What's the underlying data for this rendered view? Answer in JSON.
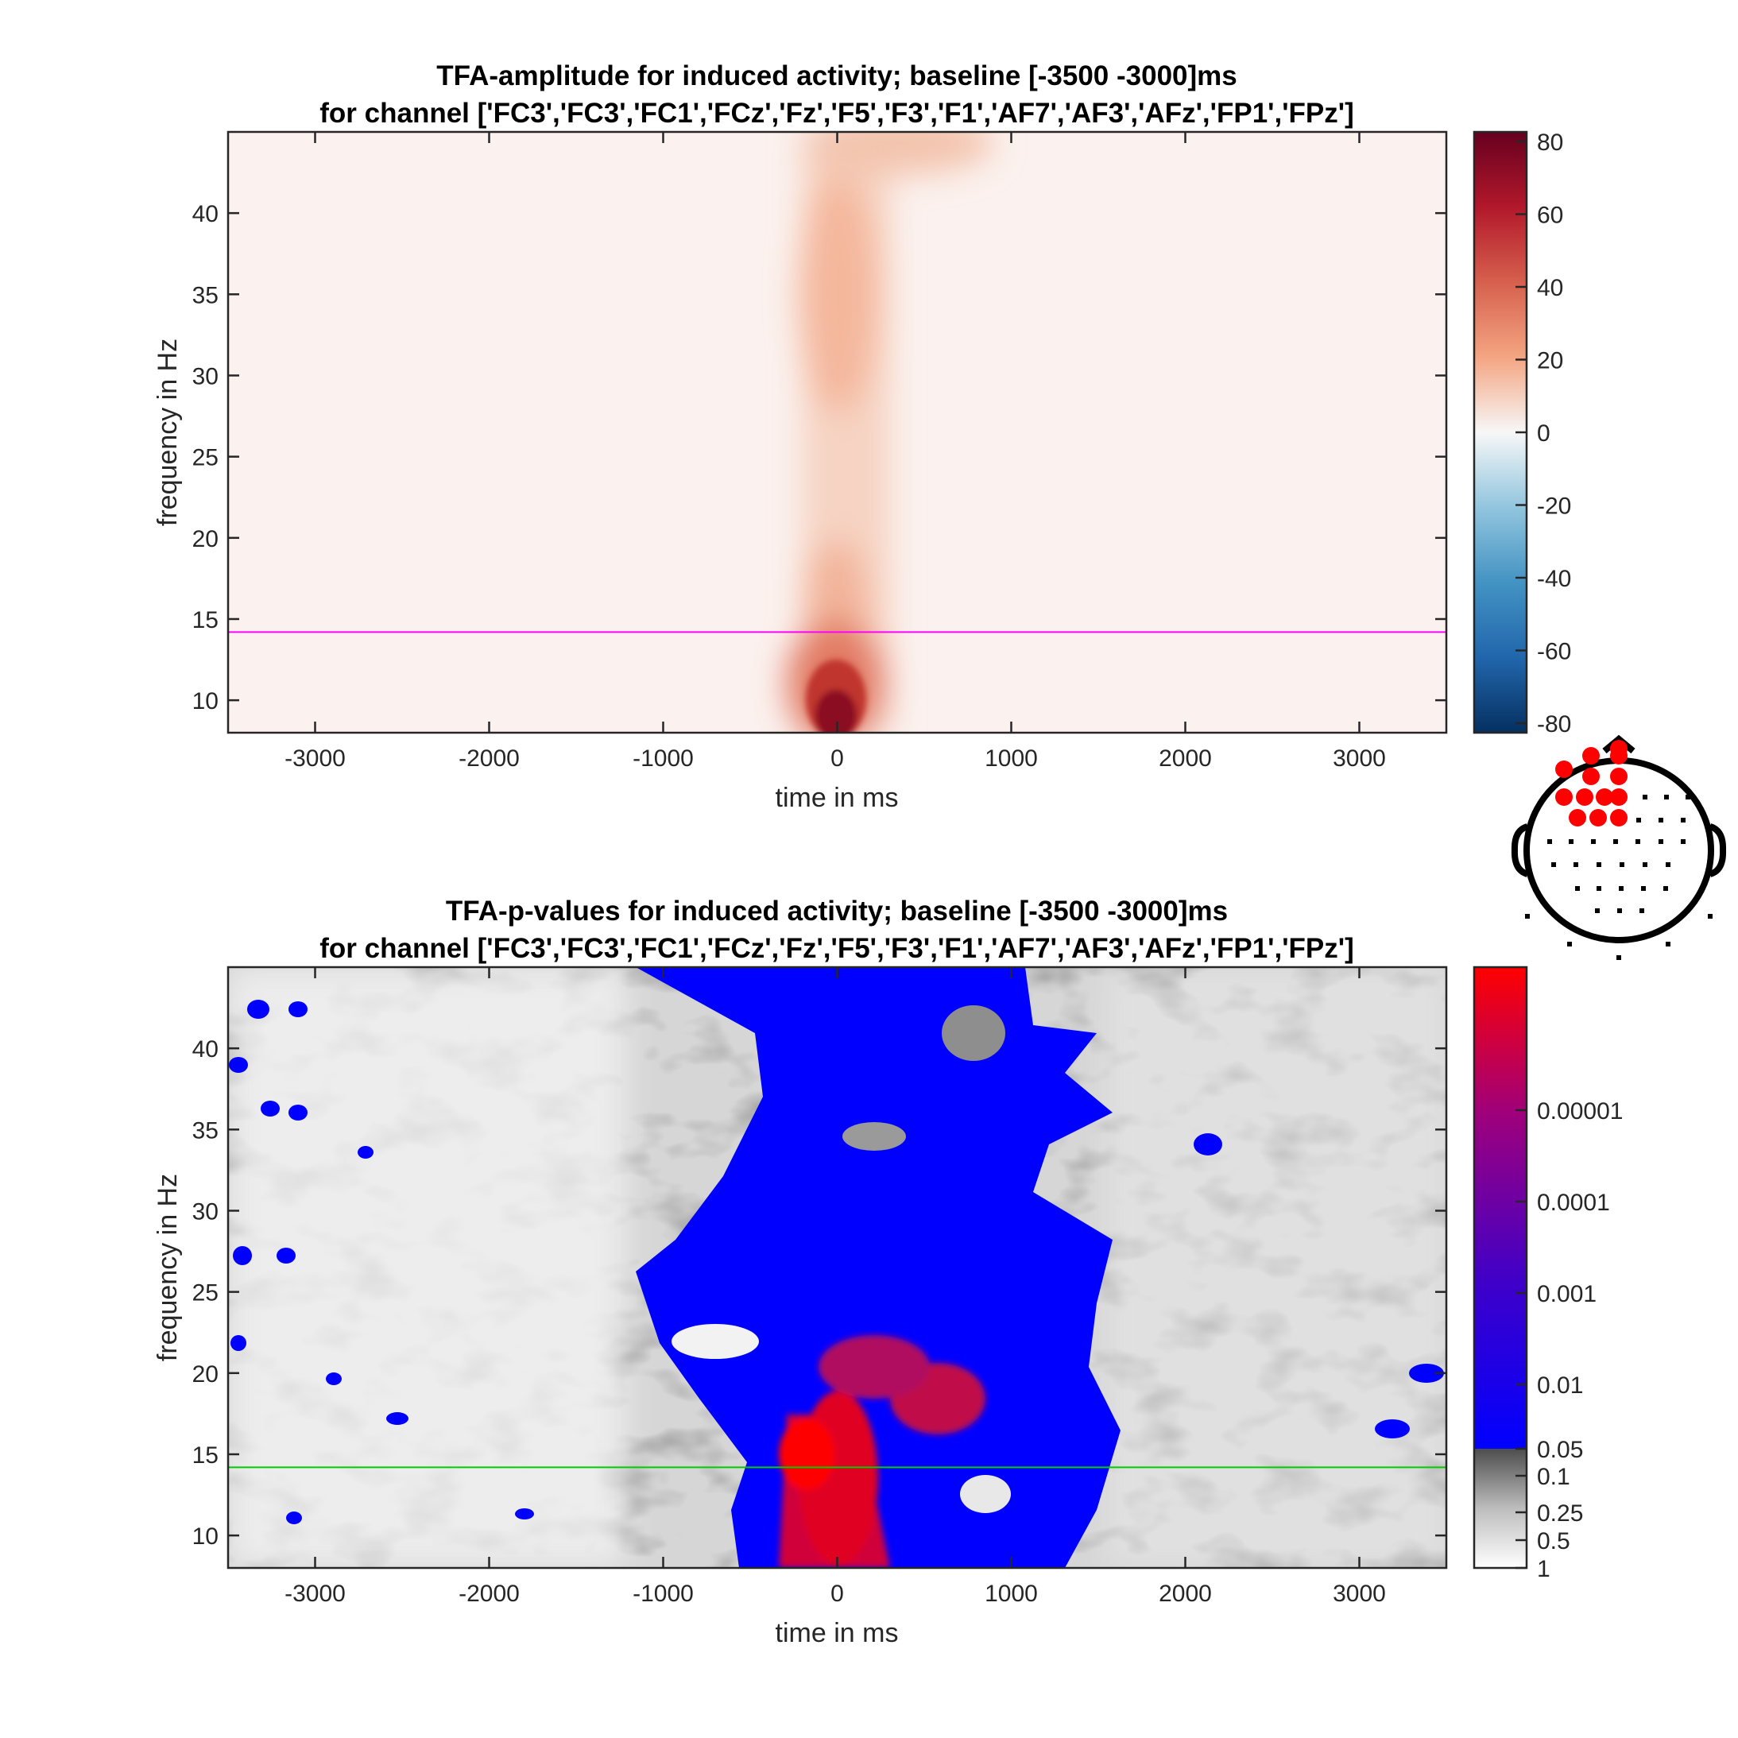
{
  "chart_data": [
    {
      "type": "heatmap",
      "title": "TFA-amplitude for induced activity; baseline [-3500 -3000]ms",
      "subtitle": "for channel ['FC3','FC3','FC1','FCz','Fz','F5','F3','F1','AF7','AF3','AFz','FP1','FPz']",
      "xlabel": "time in ms",
      "ylabel": "frequency in Hz",
      "xlim": [
        -3500,
        3500
      ],
      "ylim": [
        8,
        45
      ],
      "xticks": [
        -3000,
        -2000,
        -1000,
        0,
        1000,
        2000,
        3000
      ],
      "yticks": [
        10,
        15,
        20,
        25,
        30,
        35,
        40
      ],
      "reference_line": {
        "frequency": 14.2,
        "color": "#ff00ff"
      },
      "colorbar": {
        "limits": [
          -80,
          80
        ],
        "ticks": [
          "80",
          "60",
          "40",
          "20",
          "0",
          "-20",
          "-40",
          "-60",
          "-80"
        ],
        "colors": [
          "#053061",
          "#2166ac",
          "#4393c3",
          "#92c5de",
          "#f7f7f7",
          "#f4a582",
          "#d6604d",
          "#b2182b",
          "#67001f"
        ]
      },
      "features": [
        {
          "time_ms": 0,
          "frequency_hz": 9,
          "amplitude": 80
        },
        {
          "time_ms": 0,
          "frequency_hz": 35,
          "amplitude": 25
        },
        {
          "time_ms": 300,
          "frequency_hz": 44,
          "amplitude": 20
        }
      ]
    },
    {
      "type": "heatmap",
      "title": "TFA-p-values for induced activity; baseline [-3500 -3000]ms",
      "subtitle": "for channel ['FC3','FC3','FC1','FCz','Fz','F5','F3','F1','AF7','AF3','AFz','FP1','FPz']",
      "xlabel": "time in ms",
      "ylabel": "frequency in Hz",
      "xlim": [
        -3500,
        3500
      ],
      "ylim": [
        8,
        45
      ],
      "xticks": [
        -3000,
        -2000,
        -1000,
        0,
        1000,
        2000,
        3000
      ],
      "yticks": [
        10,
        15,
        20,
        25,
        30,
        35,
        40
      ],
      "reference_line": {
        "frequency": 14.2,
        "color": "#00cc00"
      },
      "colorbar": {
        "ticks": [
          "0.00001",
          "0.0001",
          "0.001",
          "0.01",
          "0.05",
          "0.1",
          "0.25",
          "0.5",
          "1"
        ],
        "significant_colors": [
          "#0000ff",
          "#ff0000"
        ],
        "nonsignificant_colors": [
          "#4d4d4d",
          "#ffffff"
        ]
      },
      "significant_region": {
        "time_ms": [
          -600,
          1500
        ],
        "frequency_hz": [
          8,
          45
        ]
      },
      "peak": {
        "time_ms": -150,
        "frequency_hz": 14.5,
        "p": 1e-05
      }
    }
  ],
  "head_map": {
    "highlight_color": "#ff0000",
    "highlighted_count": 13
  }
}
